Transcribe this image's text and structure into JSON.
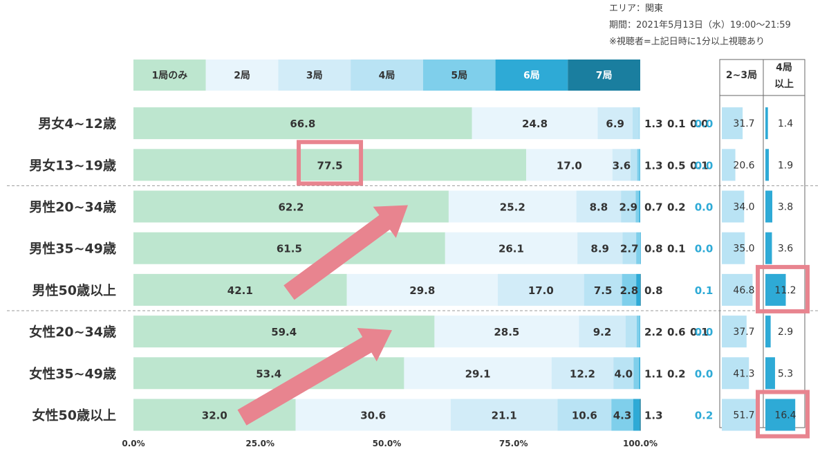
{
  "notes": [
    "エリア：関東",
    "期間：2021年5月13日（水）19:00～21:59",
    "※視聴者=上記日時に1分以上視聴あり"
  ],
  "colors": {
    "series": [
      "#bde6cf",
      "#e8f5fc",
      "#d2ecf8",
      "#b9e3f4",
      "#7fcfeb",
      "#2eaad6",
      "#1a7e9f"
    ],
    "header_text": [
      "#333333",
      "#333333",
      "#333333",
      "#333333",
      "#333333",
      "#ffffff",
      "#ffffff"
    ],
    "highlight": "#e8848f",
    "overflow_text": "#2eaad6",
    "sum_left_bar": "#b9e3f4",
    "sum_right_bar": "#2eaad6",
    "divider": "#999999"
  },
  "chart_data": [
    {
      "type": "bar",
      "orientation": "horizontal",
      "stacked": "percent",
      "series_names": [
        "1局のみ",
        "2局",
        "3局",
        "4局",
        "5局",
        "6局",
        "7局"
      ],
      "categories": [
        "男女4~12歳",
        "男女13~19歳",
        "男性20~34歳",
        "男性35~49歳",
        "男性50歳以上",
        "女性20~34歳",
        "女性35~49歳",
        "女性50歳以上"
      ],
      "values": [
        [
          66.8,
          24.8,
          6.9,
          1.3,
          0.1,
          0.0,
          0.0
        ],
        [
          77.5,
          17.0,
          3.6,
          1.3,
          0.5,
          0.1,
          0.0
        ],
        [
          62.2,
          25.2,
          8.8,
          2.9,
          0.7,
          0.2,
          0.0
        ],
        [
          61.5,
          26.1,
          8.9,
          2.7,
          0.8,
          0.1,
          0.0
        ],
        [
          42.1,
          29.8,
          17.0,
          7.5,
          2.8,
          0.8,
          0.1
        ],
        [
          59.4,
          28.5,
          9.2,
          2.2,
          0.6,
          0.1,
          0.0
        ],
        [
          53.4,
          29.1,
          12.2,
          4.0,
          1.1,
          0.2,
          0.0
        ],
        [
          32.0,
          30.6,
          21.1,
          10.6,
          4.3,
          1.3,
          0.2
        ]
      ],
      "labels": [
        [
          "66.8",
          "24.8",
          "6.9",
          "1.3",
          "0.1",
          "0.0",
          "0.0"
        ],
        [
          "77.5",
          "17.0",
          "3.6",
          "1.3",
          "0.5",
          "0.1",
          "0.0"
        ],
        [
          "62.2",
          "25.2",
          "8.8",
          "2.9",
          "0.7",
          "0.2",
          "0.0"
        ],
        [
          "61.5",
          "26.1",
          "8.9",
          "2.7",
          "0.8",
          "0.1",
          "0.0"
        ],
        [
          "42.1",
          "29.8",
          "17.0",
          "7.5",
          "2.8",
          "0.8",
          "0.1"
        ],
        [
          "59.4",
          "28.5",
          "9.2",
          "2.2",
          "0.6",
          "0.1",
          "0.0"
        ],
        [
          "53.4",
          "29.1",
          "12.2",
          "4.0",
          "1.1",
          "0.2",
          "0.0"
        ],
        [
          "32.0",
          "30.6",
          "21.1",
          "10.6",
          "4.3",
          "1.3",
          "0.2"
        ]
      ],
      "xlim": [
        0,
        100
      ],
      "x_ticks": [
        0,
        25,
        50,
        75,
        100
      ],
      "x_tick_labels": [
        "0.0%",
        "25.0%",
        "50.0%",
        "75.0%",
        "100.0%"
      ],
      "legend_position": "top",
      "group_dividers_after": [
        "男女13~19歳",
        "男性50歳以上"
      ],
      "highlights": [
        {
          "row": "男女13~19歳",
          "series": "1局のみ",
          "value": 77.5
        }
      ],
      "annotations": [
        {
          "type": "arrow",
          "from_row": "男性50歳以上",
          "to_row": "男性20~34歳",
          "direction": "up-right"
        },
        {
          "type": "arrow",
          "from_row": "女性50歳以上",
          "to_row": "女性20~34歳",
          "direction": "up-right"
        }
      ]
    },
    {
      "type": "bar",
      "orientation": "horizontal",
      "columns": [
        {
          "name": "2~3局",
          "values": [
            31.7,
            20.6,
            34.0,
            35.0,
            46.8,
            37.7,
            41.3,
            51.7
          ],
          "labels": [
            "31.7",
            "20.6",
            "34.0",
            "35.0",
            "46.8",
            "37.7",
            "41.3",
            "51.7"
          ]
        },
        {
          "name": "4局以上",
          "name_lines": [
            "4局",
            "以上"
          ],
          "values": [
            1.4,
            1.9,
            3.8,
            3.6,
            11.2,
            2.9,
            5.3,
            16.4
          ],
          "labels": [
            "1.4",
            "1.9",
            "3.8",
            "3.6",
            "11.2",
            "2.9",
            "5.3",
            "16.4"
          ]
        }
      ],
      "categories": [
        "男女4~12歳",
        "男女13~19歳",
        "男性20~34歳",
        "男性35~49歳",
        "男性50歳以上",
        "女性20~34歳",
        "女性35~49歳",
        "女性50歳以上"
      ],
      "highlights": [
        {
          "row": "男性50歳以上",
          "column": "4局以上",
          "value": 11.2
        },
        {
          "row": "女性50歳以上",
          "column": "4局以上",
          "value": 16.4
        }
      ]
    }
  ]
}
